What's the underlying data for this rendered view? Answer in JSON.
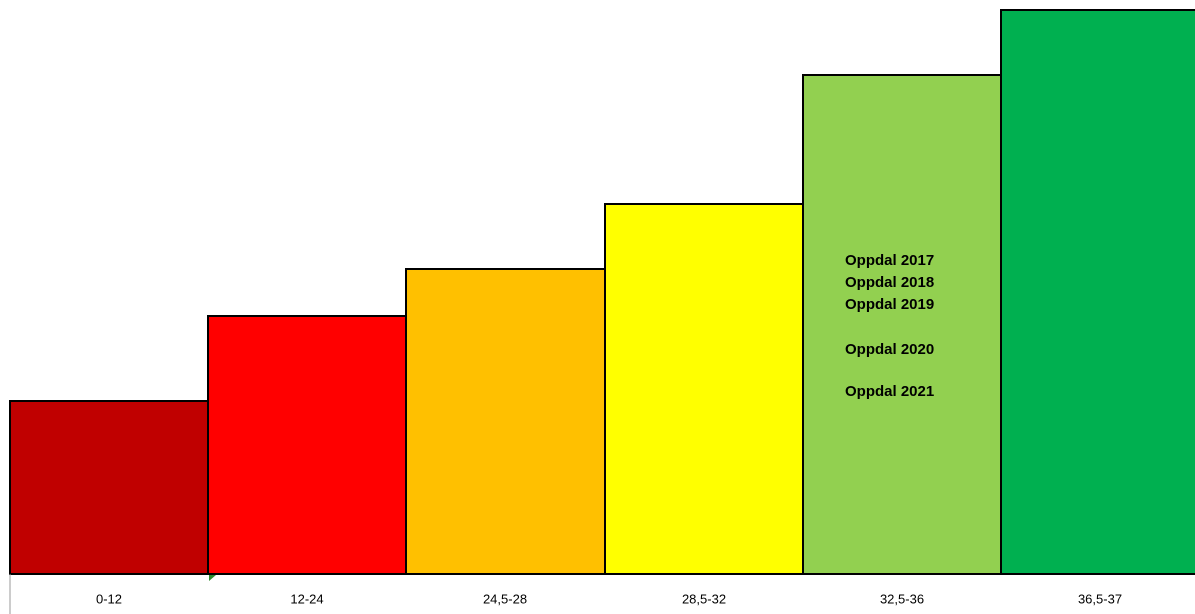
{
  "categories": [
    "0-12",
    "12-24",
    "24,5-28",
    "28,5-32",
    "32,5-36",
    "36,5-37"
  ],
  "annotations": [
    "Oppdal 2017",
    "Oppdal 2018",
    "Oppdal 2019",
    "Oppdal 2020",
    "Oppdal 2021"
  ]
}
